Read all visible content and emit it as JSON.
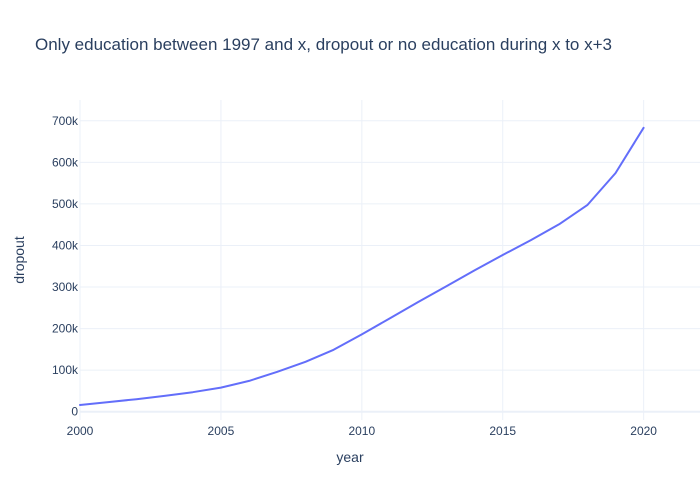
{
  "chart_data": {
    "type": "line",
    "title": "Only education between 1997 and x, dropout or no education during x to x+3",
    "xlabel": "year",
    "ylabel": "dropout",
    "xlim": [
      2000,
      2022
    ],
    "ylim": [
      -20000,
      750000
    ],
    "x_ticks": [
      2000,
      2005,
      2010,
      2015,
      2020
    ],
    "x_tick_labels": [
      "2000",
      "2005",
      "2010",
      "2015",
      "2020"
    ],
    "y_ticks": [
      0,
      100000,
      200000,
      300000,
      400000,
      500000,
      600000,
      700000
    ],
    "y_tick_labels": [
      "0",
      "100k",
      "200k",
      "300k",
      "400k",
      "500k",
      "600k",
      "700k"
    ],
    "grid": true,
    "legend": "none",
    "series": [
      {
        "color": "#636efa",
        "x": [
          2000,
          2001,
          2002,
          2003,
          2004,
          2005,
          2006,
          2007,
          2008,
          2009,
          2010,
          2011,
          2012,
          2013,
          2014,
          2015,
          2016,
          2017,
          2018,
          2019,
          2020
        ],
        "values": [
          16000,
          23000,
          30000,
          38000,
          47000,
          58000,
          74000,
          96000,
          120000,
          149000,
          186000,
          225000,
          264000,
          302000,
          340000,
          377000,
          413000,
          451000,
          497000,
          574000,
          683000
        ]
      }
    ],
    "colors": {
      "text": "#2a3f5f",
      "grid": "#ebf0f8",
      "zeroline": "#ebf0f8",
      "line": "#636efa",
      "background": "#ffffff"
    }
  }
}
